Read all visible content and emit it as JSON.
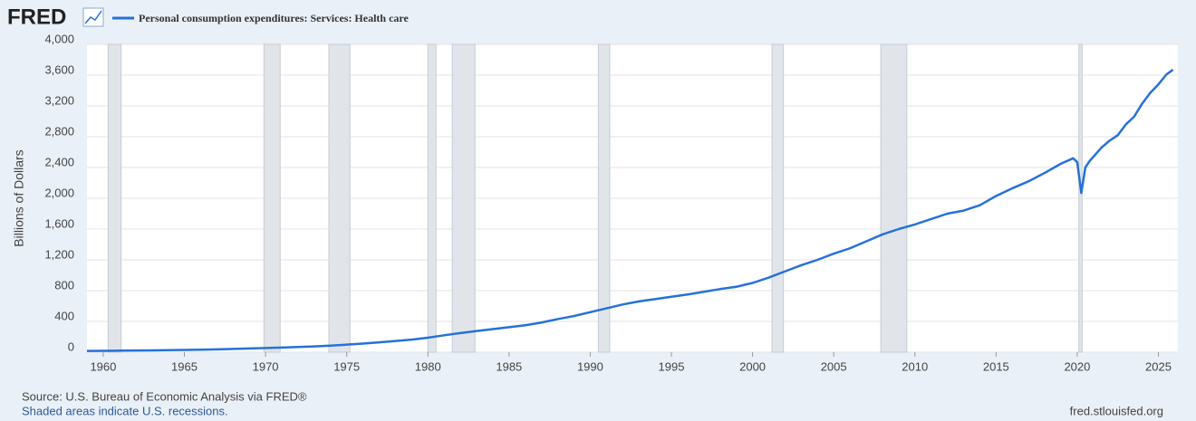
{
  "chart_data": {
    "type": "line",
    "logo": "FRED",
    "ylabel": "Billions of Dollars",
    "source": "Source: U.S. Bureau of Economic Analysis via FRED®",
    "note": "Shaded areas indicate U.S. recessions.",
    "url": "fred.stlouisfed.org",
    "xlim": [
      1959,
      2026.2
    ],
    "xticks": [
      1960,
      1965,
      1970,
      1975,
      1980,
      1985,
      1990,
      1995,
      2000,
      2005,
      2010,
      2015,
      2020,
      2025
    ],
    "ylim": [
      0,
      4000
    ],
    "yticks": [
      0,
      400,
      800,
      {
        "value": 1200,
        "label": "1,200"
      },
      {
        "value": 1600,
        "label": "1,600"
      },
      {
        "value": 2000,
        "label": "2,000"
      },
      {
        "value": 2400,
        "label": "2,400"
      },
      {
        "value": 2800,
        "label": "2,800"
      },
      {
        "value": 3200,
        "label": "3,200"
      },
      {
        "value": 3600,
        "label": "3,600"
      },
      {
        "value": 4000,
        "label": "4,000"
      }
    ],
    "grid": true,
    "recessions": [
      [
        1960.3,
        1961.1
      ],
      [
        1969.9,
        1970.9
      ],
      [
        1973.9,
        1975.2
      ],
      [
        1980.0,
        1980.5
      ],
      [
        1981.5,
        1982.9
      ],
      [
        1990.5,
        1991.2
      ],
      [
        2001.2,
        2001.9
      ],
      [
        2007.9,
        2009.5
      ],
      [
        2020.1,
        2020.3
      ]
    ],
    "x": [
      1959,
      1960,
      1961,
      1962,
      1963,
      1964,
      1965,
      1966,
      1967,
      1968,
      1969,
      1970,
      1971,
      1972,
      1973,
      1974,
      1975,
      1976,
      1977,
      1978,
      1979,
      1980,
      1981,
      1982,
      1983,
      1984,
      1985,
      1986,
      1987,
      1988,
      1989,
      1990,
      1991,
      1992,
      1993,
      1994,
      1995,
      1996,
      1997,
      1998,
      1999,
      2000,
      2001,
      2002,
      2003,
      2004,
      2005,
      2006,
      2007,
      2008,
      2009,
      2010,
      2011,
      2012,
      2013,
      2014,
      2015,
      2016,
      2017,
      2018,
      2019,
      2019.75,
      2020,
      2020.25,
      2020.5,
      2020.75,
      2021,
      2021.5,
      2022,
      2022.5,
      2023,
      2023.5,
      2024,
      2024.5,
      2025,
      2025.5,
      2025.9
    ],
    "series": [
      {
        "name": "Personal consumption expenditures: Services: Health care",
        "color": "#2571d9",
        "values": [
          16,
          18,
          20,
          22,
          24,
          27,
          29,
          33,
          37,
          42,
          48,
          54,
          60,
          67,
          75,
          85,
          98,
          112,
          128,
          145,
          163,
          188,
          220,
          248,
          275,
          300,
          325,
          350,
          385,
          430,
          470,
          520,
          570,
          620,
          660,
          690,
          720,
          750,
          785,
          820,
          850,
          900,
          970,
          1050,
          1130,
          1200,
          1280,
          1350,
          1440,
          1530,
          1600,
          1660,
          1730,
          1800,
          1840,
          1910,
          2030,
          2130,
          2220,
          2330,
          2450,
          2520,
          2470,
          2070,
          2400,
          2480,
          2540,
          2660,
          2750,
          2820,
          2960,
          3060,
          3230,
          3370,
          3480,
          3610,
          3670
        ]
      }
    ]
  }
}
